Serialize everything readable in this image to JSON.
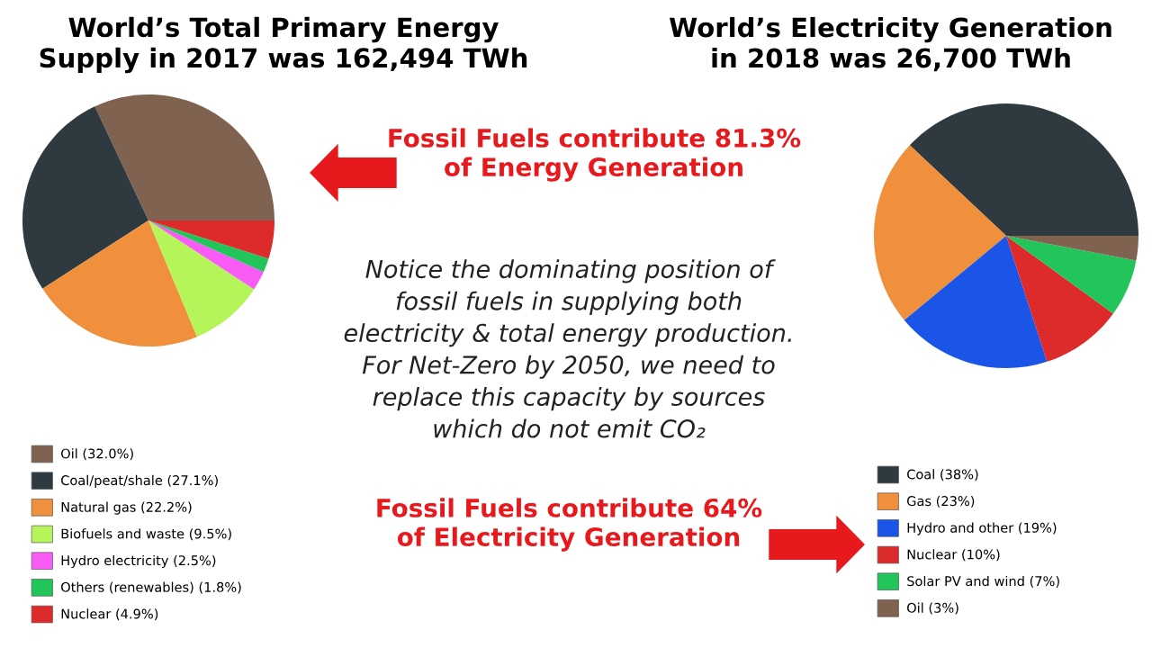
{
  "chart_data": [
    {
      "type": "pie",
      "title": "World’s Total Primary Energy\nSupply in 2017 was 162,494 TWh",
      "categories": [
        "Oil (32.0%)",
        "Coal/peat/shale (27.1%)",
        "Natural gas (22.2%)",
        "Biofuels and waste (9.5%)",
        "Hydro electricity (2.5%)",
        "Others (renewables) (1.8%)",
        "Nuclear (4.9%)"
      ],
      "values": [
        32.0,
        27.1,
        22.2,
        9.5,
        2.5,
        1.8,
        4.9
      ],
      "colors": [
        "#7f6350",
        "#2f3a40",
        "#f0903c",
        "#b5f55a",
        "#f95cf5",
        "#22c55a",
        "#dd2a2a"
      ],
      "legend": "bottom"
    },
    {
      "type": "other",
      "annotations": [
        "Fossil Fuels contribute 81.3%\nof Energy Generation",
        "Notice the dominating position of\nfossil fuels in supplying both\nelectricity & total energy production.\nFor Net-Zero by 2050, we need to\nreplace this capacity by sources\nwhich do not emit CO₂",
        "Fossil Fuels contribute 64%\nof Electricity Generation"
      ]
    },
    {
      "type": "pie",
      "title": "World’s Electricity Generation\nin 2018 was 26,700 TWh",
      "categories": [
        "Coal (38%)",
        "Gas (23%)",
        "Hydro and other (19%)",
        "Nuclear (10%)",
        "Solar PV and wind (7%)",
        "Oil (3%)"
      ],
      "values": [
        38,
        23,
        19,
        10,
        7,
        3
      ],
      "colors": [
        "#2f3a40",
        "#f0903c",
        "#1a55e8",
        "#dd2a2a",
        "#22c55a",
        "#7f6350"
      ],
      "legend": "bottom"
    }
  ]
}
